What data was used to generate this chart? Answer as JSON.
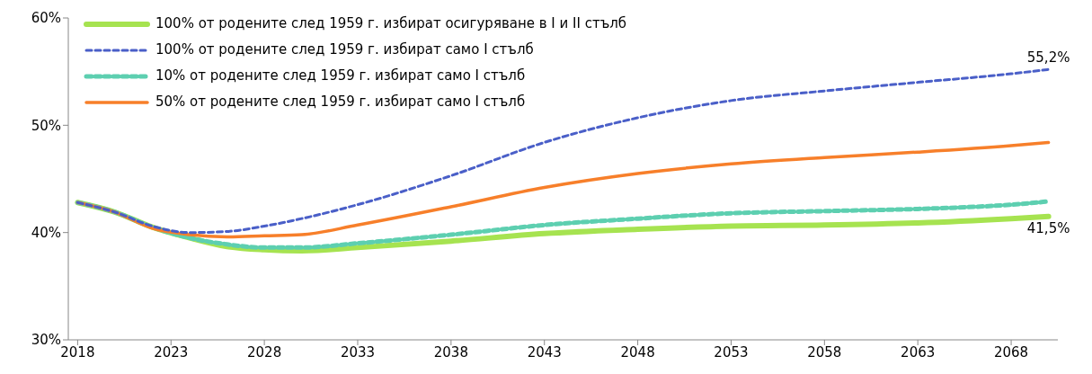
{
  "chart_data": {
    "type": "line",
    "xlim": [
      2017.5,
      2070.5
    ],
    "xticks": [
      2018,
      2023,
      2028,
      2033,
      2038,
      2043,
      2048,
      2053,
      2058,
      2063,
      2068
    ],
    "ylim": [
      30,
      60
    ],
    "yticks": [
      {
        "value": 30,
        "label": "30%"
      },
      {
        "value": 40,
        "label": "40%"
      },
      {
        "value": 50,
        "label": "50%"
      },
      {
        "value": 60,
        "label": "60%"
      }
    ],
    "grid": false,
    "legend": "top left",
    "marker": "none",
    "x": [
      2018,
      2020,
      2022,
      2024,
      2026,
      2028,
      2030,
      2033,
      2038,
      2043,
      2048,
      2053,
      2058,
      2063,
      2068,
      2070
    ],
    "series": [
      {
        "name": "100% от родените след 1959 г. избират осигуряване в I и II стълб",
        "color": "#a6e350",
        "line_style": "solid",
        "values": [
          42.8,
          41.9,
          40.5,
          39.5,
          38.7,
          38.4,
          38.3,
          38.6,
          39.2,
          39.9,
          40.3,
          40.6,
          40.7,
          40.9,
          41.3,
          41.5
        ]
      },
      {
        "name": "100% от родените след 1959 г. избират само I стълб",
        "color": "#4a5fc8",
        "line_style": "dashed",
        "values": [
          42.8,
          41.9,
          40.6,
          40.0,
          40.1,
          40.6,
          41.3,
          42.6,
          45.3,
          48.4,
          50.7,
          52.3,
          53.2,
          54.0,
          54.8,
          55.2
        ]
      },
      {
        "name": "10% от родените след 1959 г. избират само I стълб",
        "color": "#5dcfb0",
        "line_style": "dashed",
        "values": [
          42.8,
          41.9,
          40.5,
          39.5,
          38.9,
          38.6,
          38.6,
          39.0,
          39.8,
          40.7,
          41.3,
          41.8,
          42.0,
          42.2,
          42.6,
          42.9
        ]
      },
      {
        "name": "50% от родените след 1959 г. избират само I стълб",
        "color": "#f77f2a",
        "line_style": "solid",
        "values": [
          42.8,
          41.9,
          40.4,
          39.8,
          39.6,
          39.7,
          39.8,
          40.7,
          42.4,
          44.2,
          45.5,
          46.4,
          47.0,
          47.5,
          48.1,
          48.4
        ]
      }
    ],
    "annotations": [
      {
        "text": "55,2%",
        "x": 2070,
        "y": 55.2
      },
      {
        "text": "41,5%",
        "x": 2070,
        "y": 41.5
      }
    ]
  }
}
